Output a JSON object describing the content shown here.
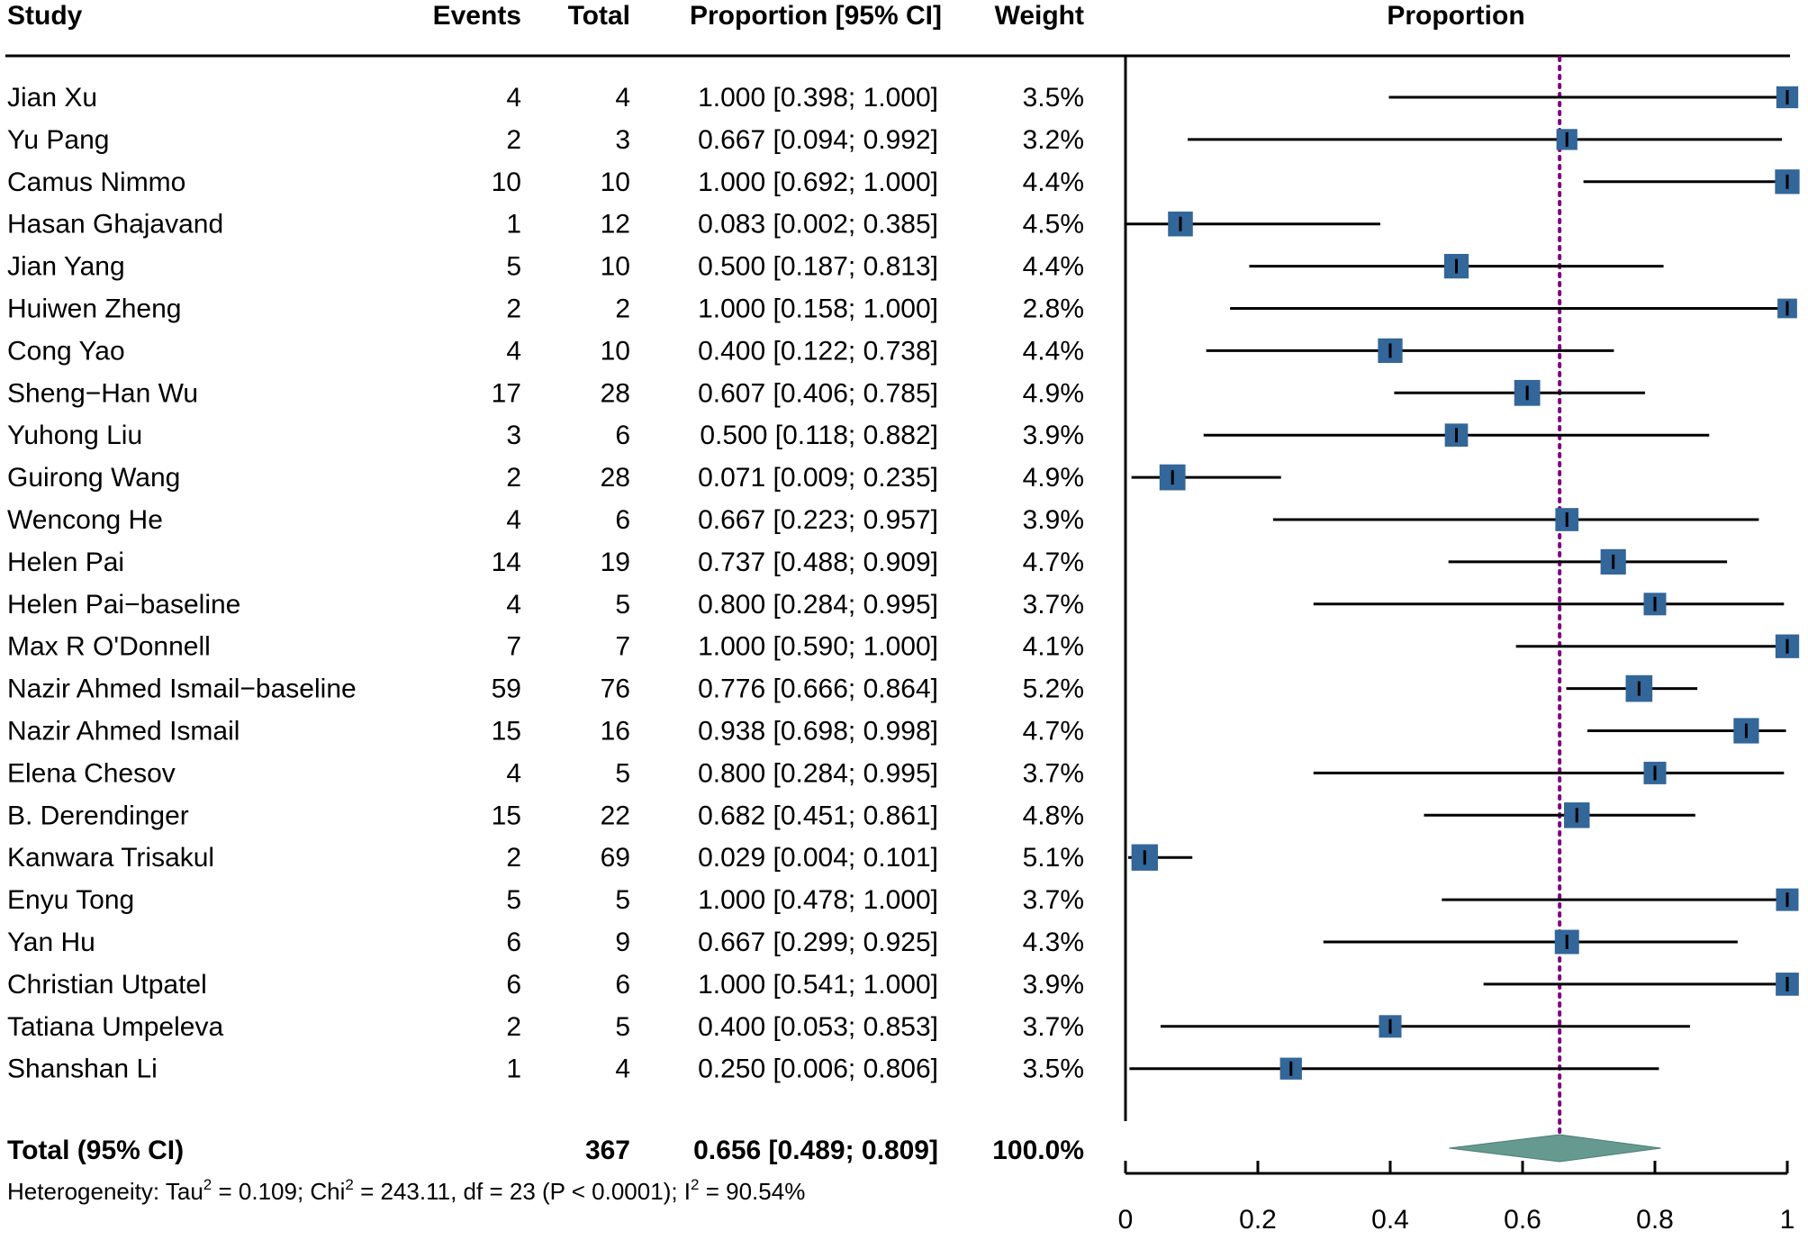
{
  "chart_data": {
    "type": "forest",
    "headers": {
      "study": "Study",
      "events": "Events",
      "total": "Total",
      "proportion_ci": "Proportion [95% CI]",
      "weight": "Weight",
      "plot": "Proportion"
    },
    "studies": [
      {
        "name": "Jian Xu",
        "events": "4",
        "total": "4",
        "ci_text": "1.000 [0.398; 1.000]",
        "weight": "3.5%",
        "est": 1.0,
        "lo": 0.398,
        "hi": 1.0,
        "w": 3.5
      },
      {
        "name": "Yu Pang",
        "events": "2",
        "total": "3",
        "ci_text": "0.667 [0.094; 0.992]",
        "weight": "3.2%",
        "est": 0.667,
        "lo": 0.094,
        "hi": 0.992,
        "w": 3.2
      },
      {
        "name": "Camus Nimmo",
        "events": "10",
        "total": "10",
        "ci_text": "1.000 [0.692; 1.000]",
        "weight": "4.4%",
        "est": 1.0,
        "lo": 0.692,
        "hi": 1.0,
        "w": 4.4
      },
      {
        "name": "Hasan Ghajavand",
        "events": "1",
        "total": "12",
        "ci_text": "0.083 [0.002; 0.385]",
        "weight": "4.5%",
        "est": 0.083,
        "lo": 0.002,
        "hi": 0.385,
        "w": 4.5
      },
      {
        "name": "Jian Yang",
        "events": "5",
        "total": "10",
        "ci_text": "0.500 [0.187; 0.813]",
        "weight": "4.4%",
        "est": 0.5,
        "lo": 0.187,
        "hi": 0.813,
        "w": 4.4
      },
      {
        "name": "Huiwen Zheng",
        "events": "2",
        "total": "2",
        "ci_text": "1.000 [0.158; 1.000]",
        "weight": "2.8%",
        "est": 1.0,
        "lo": 0.158,
        "hi": 1.0,
        "w": 2.8
      },
      {
        "name": "Cong Yao",
        "events": "4",
        "total": "10",
        "ci_text": "0.400 [0.122; 0.738]",
        "weight": "4.4%",
        "est": 0.4,
        "lo": 0.122,
        "hi": 0.738,
        "w": 4.4
      },
      {
        "name": "Sheng−Han Wu",
        "events": "17",
        "total": "28",
        "ci_text": "0.607 [0.406; 0.785]",
        "weight": "4.9%",
        "est": 0.607,
        "lo": 0.406,
        "hi": 0.785,
        "w": 4.9
      },
      {
        "name": "Yuhong Liu",
        "events": "3",
        "total": "6",
        "ci_text": "0.500 [0.118; 0.882]",
        "weight": "3.9%",
        "est": 0.5,
        "lo": 0.118,
        "hi": 0.882,
        "w": 3.9
      },
      {
        "name": "Guirong Wang",
        "events": "2",
        "total": "28",
        "ci_text": "0.071 [0.009; 0.235]",
        "weight": "4.9%",
        "est": 0.071,
        "lo": 0.009,
        "hi": 0.235,
        "w": 4.9
      },
      {
        "name": "Wencong He",
        "events": "4",
        "total": "6",
        "ci_text": "0.667 [0.223; 0.957]",
        "weight": "3.9%",
        "est": 0.667,
        "lo": 0.223,
        "hi": 0.957,
        "w": 3.9
      },
      {
        "name": "Helen Pai",
        "events": "14",
        "total": "19",
        "ci_text": "0.737 [0.488; 0.909]",
        "weight": "4.7%",
        "est": 0.737,
        "lo": 0.488,
        "hi": 0.909,
        "w": 4.7
      },
      {
        "name": "Helen Pai−baseline",
        "events": "4",
        "total": "5",
        "ci_text": "0.800 [0.284; 0.995]",
        "weight": "3.7%",
        "est": 0.8,
        "lo": 0.284,
        "hi": 0.995,
        "w": 3.7
      },
      {
        "name": "Max R O'Donnell",
        "events": "7",
        "total": "7",
        "ci_text": "1.000 [0.590; 1.000]",
        "weight": "4.1%",
        "est": 1.0,
        "lo": 0.59,
        "hi": 1.0,
        "w": 4.1
      },
      {
        "name": "Nazir Ahmed Ismail−baseline",
        "events": "59",
        "total": "76",
        "ci_text": "0.776 [0.666; 0.864]",
        "weight": "5.2%",
        "est": 0.776,
        "lo": 0.666,
        "hi": 0.864,
        "w": 5.2
      },
      {
        "name": "Nazir Ahmed Ismail",
        "events": "15",
        "total": "16",
        "ci_text": "0.938 [0.698; 0.998]",
        "weight": "4.7%",
        "est": 0.938,
        "lo": 0.698,
        "hi": 0.998,
        "w": 4.7
      },
      {
        "name": "Elena Chesov",
        "events": "4",
        "total": "5",
        "ci_text": "0.800 [0.284; 0.995]",
        "weight": "3.7%",
        "est": 0.8,
        "lo": 0.284,
        "hi": 0.995,
        "w": 3.7
      },
      {
        "name": "B. Derendinger",
        "events": "15",
        "total": "22",
        "ci_text": "0.682 [0.451; 0.861]",
        "weight": "4.8%",
        "est": 0.682,
        "lo": 0.451,
        "hi": 0.861,
        "w": 4.8
      },
      {
        "name": "Kanwara Trisakul",
        "events": "2",
        "total": "69",
        "ci_text": "0.029 [0.004; 0.101]",
        "weight": "5.1%",
        "est": 0.029,
        "lo": 0.004,
        "hi": 0.101,
        "w": 5.1
      },
      {
        "name": "Enyu Tong",
        "events": "5",
        "total": "5",
        "ci_text": "1.000 [0.478; 1.000]",
        "weight": "3.7%",
        "est": 1.0,
        "lo": 0.478,
        "hi": 1.0,
        "w": 3.7
      },
      {
        "name": "Yan Hu",
        "events": "6",
        "total": "9",
        "ci_text": "0.667 [0.299; 0.925]",
        "weight": "4.3%",
        "est": 0.667,
        "lo": 0.299,
        "hi": 0.925,
        "w": 4.3
      },
      {
        "name": "Christian Utpatel",
        "events": "6",
        "total": "6",
        "ci_text": "1.000 [0.541; 1.000]",
        "weight": "3.9%",
        "est": 1.0,
        "lo": 0.541,
        "hi": 1.0,
        "w": 3.9
      },
      {
        "name": "Tatiana Umpeleva",
        "events": "2",
        "total": "5",
        "ci_text": "0.400 [0.053; 0.853]",
        "weight": "3.7%",
        "est": 0.4,
        "lo": 0.053,
        "hi": 0.853,
        "w": 3.7
      },
      {
        "name": "Shanshan Li",
        "events": "1",
        "total": "4",
        "ci_text": "0.250 [0.006; 0.806]",
        "weight": "3.5%",
        "est": 0.25,
        "lo": 0.006,
        "hi": 0.806,
        "w": 3.5
      }
    ],
    "total": {
      "label": "Total (95% CI)",
      "total": "367",
      "ci_text": "0.656 [0.489; 0.809]",
      "weight": "100.0%",
      "est": 0.656,
      "lo": 0.489,
      "hi": 0.809
    },
    "heterogeneity": {
      "prefix": "Heterogeneity: Tau",
      "tau_sup": "2",
      "tau_val": " = 0.109; Chi",
      "chi_sup": "2",
      "chi_val": " = 243.11, df = 23 (P < 0.0001); I",
      "i_sup": "2",
      "i_val": " = 90.54%"
    },
    "xaxis": {
      "range": [
        0,
        1
      ],
      "ticks": [
        0,
        0.2,
        0.4,
        0.6,
        0.8,
        1
      ],
      "tick_labels": [
        "0",
        "0.2",
        "0.4",
        "0.6",
        "0.8",
        "1"
      ]
    },
    "colors": {
      "square": "#336699",
      "diamond": "#66998f",
      "ref_line": "#800080"
    }
  }
}
